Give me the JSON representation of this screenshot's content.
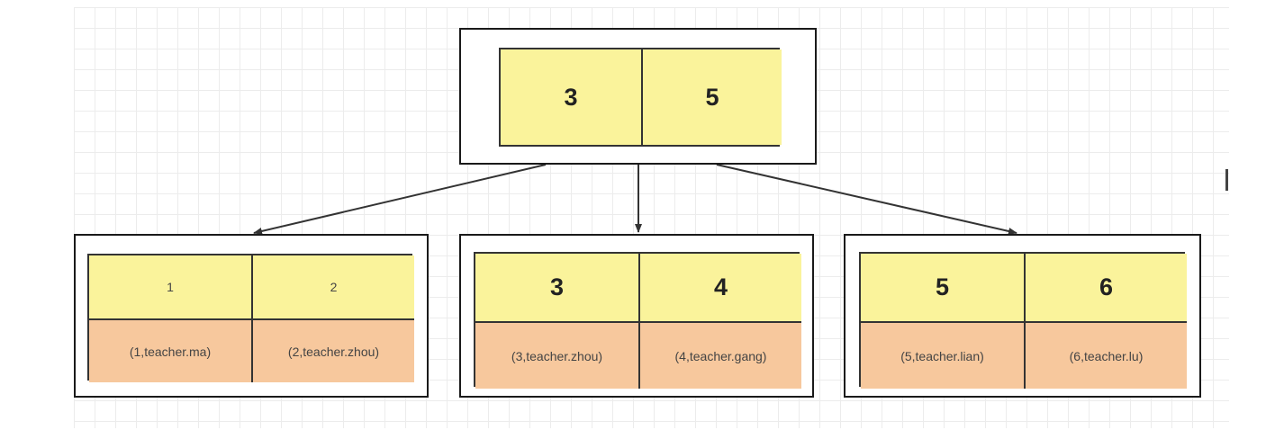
{
  "diagram": {
    "root": {
      "keys": [
        "3",
        "5"
      ]
    },
    "leaves": [
      {
        "keys": [
          "1",
          "2"
        ],
        "records": [
          "(1,teacher.ma)",
          "(2,teacher.zhou)"
        ]
      },
      {
        "keys": [
          "3",
          "4"
        ],
        "records": [
          "(3,teacher.zhou)",
          "(4,teacher.gang)"
        ]
      },
      {
        "keys": [
          "5",
          "6"
        ],
        "records": [
          "(5,teacher.lian)",
          "(6,teacher.lu)"
        ]
      }
    ],
    "edges": [
      {
        "from": "root",
        "to": "leaf-1"
      },
      {
        "from": "root",
        "to": "leaf-2"
      },
      {
        "from": "root",
        "to": "leaf-3"
      }
    ],
    "colors": {
      "key_fill": "#faf39b",
      "record_fill": "#f7c89d",
      "border": "#1a1a1a",
      "grid": "#ececec"
    }
  }
}
